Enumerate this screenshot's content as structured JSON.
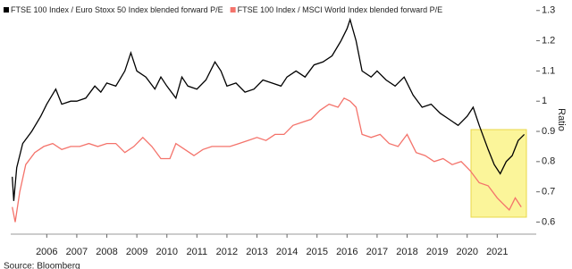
{
  "chart_data": {
    "type": "line",
    "y_label": "Ratio",
    "source": "Source: Bloomberg",
    "xlim": [
      2004.8,
      2022.3
    ],
    "xticks": [
      2006,
      2007,
      2008,
      2009,
      2010,
      2011,
      2012,
      2013,
      2014,
      2015,
      2016,
      2017,
      2018,
      2019,
      2020,
      2021
    ],
    "ylim": [
      0.56,
      1.32
    ],
    "yticks": [
      0.6,
      0.7,
      0.8,
      0.9,
      1.0,
      1.1,
      1.2,
      1.3
    ],
    "y_axis_side": "right",
    "legend_position": "top-left",
    "series": [
      {
        "name": "FTSE 100 Index / Euro Stoxx 50 Index blended forward P/E",
        "color": "#000000",
        "x": [
          2004.85,
          2004.9,
          2005.0,
          2005.2,
          2005.5,
          2005.8,
          2006.0,
          2006.3,
          2006.5,
          2006.8,
          2007.0,
          2007.3,
          2007.6,
          2007.8,
          2008.0,
          2008.3,
          2008.6,
          2008.8,
          2009.0,
          2009.3,
          2009.6,
          2009.8,
          2010.0,
          2010.3,
          2010.5,
          2010.7,
          2011.0,
          2011.3,
          2011.6,
          2011.8,
          2012.0,
          2012.3,
          2012.6,
          2012.9,
          2013.2,
          2013.5,
          2013.8,
          2014.0,
          2014.3,
          2014.6,
          2014.9,
          2015.2,
          2015.5,
          2015.8,
          2016.0,
          2016.1,
          2016.3,
          2016.5,
          2016.8,
          2017.0,
          2017.3,
          2017.6,
          2017.9,
          2018.2,
          2018.5,
          2018.8,
          2019.1,
          2019.4,
          2019.7,
          2020.0,
          2020.2,
          2020.4,
          2020.7,
          2020.9,
          2021.1,
          2021.3,
          2021.5,
          2021.7,
          2021.9
        ],
        "values": [
          0.75,
          0.67,
          0.78,
          0.86,
          0.9,
          0.95,
          0.99,
          1.04,
          0.99,
          1.0,
          1.0,
          1.01,
          1.05,
          1.03,
          1.06,
          1.05,
          1.1,
          1.16,
          1.1,
          1.08,
          1.04,
          1.08,
          1.05,
          1.01,
          1.08,
          1.05,
          1.04,
          1.07,
          1.13,
          1.1,
          1.05,
          1.06,
          1.03,
          1.04,
          1.07,
          1.06,
          1.05,
          1.08,
          1.1,
          1.08,
          1.12,
          1.13,
          1.15,
          1.2,
          1.24,
          1.27,
          1.2,
          1.1,
          1.08,
          1.1,
          1.07,
          1.05,
          1.08,
          1.02,
          0.98,
          0.99,
          0.96,
          0.94,
          0.92,
          0.95,
          0.98,
          0.92,
          0.84,
          0.79,
          0.76,
          0.8,
          0.82,
          0.87,
          0.89
        ]
      },
      {
        "name": "FTSE 100 Index / MSCI World Index blended forward P/E",
        "color": "#f4736b",
        "x": [
          2004.85,
          2004.95,
          2005.1,
          2005.3,
          2005.6,
          2005.9,
          2006.2,
          2006.5,
          2006.8,
          2007.1,
          2007.4,
          2007.7,
          2008.0,
          2008.3,
          2008.6,
          2008.9,
          2009.2,
          2009.5,
          2009.8,
          2010.1,
          2010.3,
          2010.6,
          2010.9,
          2011.2,
          2011.5,
          2011.8,
          2012.1,
          2012.4,
          2012.7,
          2013.0,
          2013.3,
          2013.6,
          2013.9,
          2014.2,
          2014.5,
          2014.8,
          2015.1,
          2015.4,
          2015.7,
          2015.9,
          2016.1,
          2016.3,
          2016.5,
          2016.8,
          2017.1,
          2017.4,
          2017.7,
          2018.0,
          2018.3,
          2018.6,
          2018.9,
          2019.2,
          2019.5,
          2019.8,
          2020.1,
          2020.4,
          2020.7,
          2021.0,
          2021.2,
          2021.4,
          2021.6,
          2021.8
        ],
        "values": [
          0.65,
          0.6,
          0.7,
          0.79,
          0.83,
          0.85,
          0.86,
          0.84,
          0.85,
          0.85,
          0.86,
          0.85,
          0.86,
          0.86,
          0.83,
          0.85,
          0.88,
          0.85,
          0.81,
          0.81,
          0.86,
          0.84,
          0.82,
          0.84,
          0.85,
          0.85,
          0.85,
          0.86,
          0.87,
          0.88,
          0.87,
          0.89,
          0.89,
          0.92,
          0.93,
          0.94,
          0.97,
          0.99,
          0.98,
          1.01,
          1.0,
          0.98,
          0.89,
          0.88,
          0.89,
          0.86,
          0.85,
          0.89,
          0.83,
          0.82,
          0.8,
          0.81,
          0.79,
          0.8,
          0.77,
          0.73,
          0.72,
          0.68,
          0.66,
          0.64,
          0.68,
          0.65
        ]
      }
    ]
  }
}
